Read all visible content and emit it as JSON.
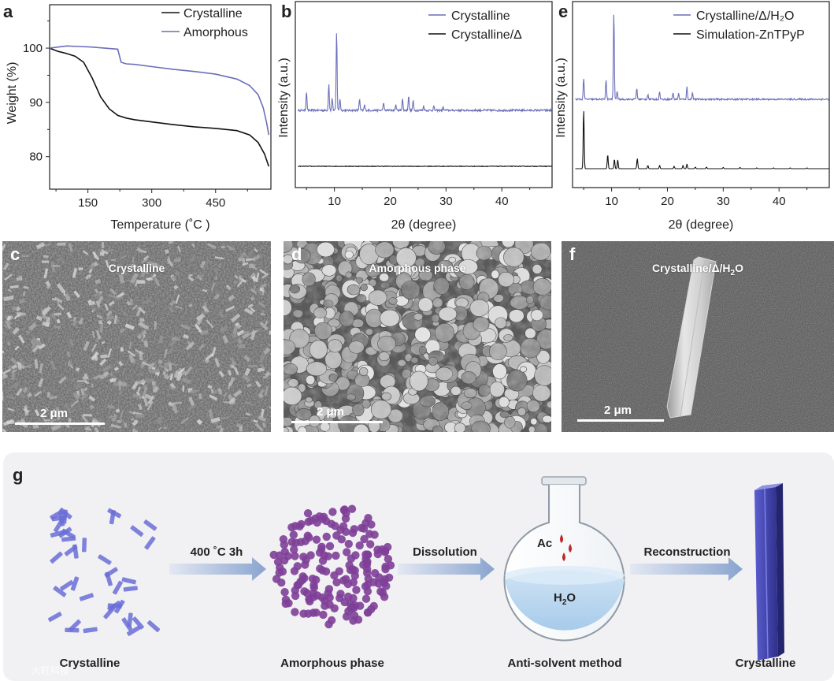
{
  "panels": {
    "a": "a",
    "b": "b",
    "c": "c",
    "d": "d",
    "e": "e",
    "f": "f",
    "g": "g"
  },
  "sem": {
    "c": {
      "label": "Crystalline",
      "scale": "2 μm"
    },
    "d": {
      "label": "Amorphous phase",
      "scale": "2 μm"
    },
    "f": {
      "label": "Crystalline/Δ/H",
      "label_sub": "2",
      "label_tail": "O",
      "scale": "2 μm"
    }
  },
  "scheme": {
    "step1": "400 ˚C  3h",
    "step2": "Dissolution",
    "step3": "Reconstruction",
    "flask_ac": "Ac",
    "flask_h2o_main": "H",
    "flask_h2o_sub": "2",
    "flask_h2o_tail": "O",
    "cap1": "Crystalline",
    "cap2": "Amorphous phase",
    "cap3": "Anti-solvent method",
    "cap4": "Crystalline",
    "watermark": "大旺科技"
  },
  "colors": {
    "blue": "#6a6fb8",
    "black": "#111111",
    "purple": "#7e3f98",
    "rod": "#6a6fd6"
  },
  "chart_data": [
    {
      "type": "line",
      "panel": "a",
      "xlabel": "Temperature (˚C )",
      "ylabel": "Weight (%)",
      "xlim": [
        60,
        580
      ],
      "ylim": [
        74,
        108
      ],
      "xticks": [
        150,
        300,
        450
      ],
      "yticks": [
        80,
        90,
        100
      ],
      "legend_position": "top-right",
      "series": [
        {
          "name": "Crystalline",
          "color": "#111111",
          "x": [
            60,
            80,
            100,
            120,
            140,
            160,
            180,
            200,
            220,
            240,
            260,
            300,
            350,
            400,
            450,
            500,
            530,
            550,
            565,
            575
          ],
          "y": [
            100,
            99.4,
            99.0,
            98.5,
            97.4,
            94.5,
            91.0,
            88.8,
            87.6,
            87.1,
            86.8,
            86.4,
            85.9,
            85.5,
            85.2,
            84.8,
            84.0,
            82.6,
            80.5,
            78.2
          ]
        },
        {
          "name": "Amorphous",
          "color": "#6a6fb8",
          "x": [
            60,
            80,
            100,
            130,
            160,
            190,
            220,
            228,
            240,
            260,
            300,
            350,
            400,
            450,
            500,
            530,
            550,
            562,
            570,
            575
          ],
          "y": [
            100,
            100.2,
            100.4,
            100.3,
            100.2,
            100.0,
            99.8,
            97.4,
            97.1,
            97.0,
            96.6,
            96.1,
            95.7,
            95.2,
            94.3,
            93.1,
            91.4,
            89.0,
            86.2,
            84.0
          ]
        }
      ]
    },
    {
      "type": "line",
      "panel": "b",
      "xlabel": "2θ (degree)",
      "ylabel": "Intensity  (a.u.)",
      "xlim": [
        3,
        49
      ],
      "xticks": [
        10,
        20,
        30,
        40
      ],
      "legend_position": "top-right",
      "series": [
        {
          "name": "Crystalline",
          "color": "#6a6fb8",
          "baseline": 0.6,
          "noise": 0.25,
          "peaks": [
            [
              5.0,
              2.4
            ],
            [
              9.0,
              3.4
            ],
            [
              9.6,
              1.6
            ],
            [
              10.4,
              10.0
            ],
            [
              11.0,
              1.5
            ],
            [
              14.5,
              1.4
            ],
            [
              15.4,
              0.7
            ],
            [
              18.8,
              1.0
            ],
            [
              21.0,
              0.7
            ],
            [
              22.2,
              1.5
            ],
            [
              23.3,
              1.9
            ],
            [
              24.1,
              1.2
            ],
            [
              26.0,
              0.6
            ],
            [
              27.8,
              0.5
            ],
            [
              29.5,
              0.4
            ]
          ]
        },
        {
          "name": "Crystalline/Δ",
          "color": "#111111",
          "baseline": 0.0,
          "noise": 0.1,
          "peaks": []
        }
      ]
    },
    {
      "type": "line",
      "panel": "e",
      "xlabel": "2θ (degree)",
      "ylabel": "Intensity  (a.u.)",
      "xlim": [
        3,
        49
      ],
      "xticks": [
        10,
        20,
        30,
        40
      ],
      "legend_position": "top-right",
      "series": [
        {
          "name": "Crystalline/Δ/H2O",
          "color": "#6a6fb8",
          "baseline": 0.0,
          "noise": 0.2,
          "peaks": [
            [
              5.0,
              2.6
            ],
            [
              9.0,
              2.4
            ],
            [
              10.4,
              10.5
            ],
            [
              11.0,
              1.0
            ],
            [
              14.5,
              1.3
            ],
            [
              16.5,
              0.6
            ],
            [
              18.6,
              0.9
            ],
            [
              21.0,
              0.8
            ],
            [
              22.0,
              0.7
            ],
            [
              23.5,
              1.5
            ],
            [
              24.5,
              0.8
            ]
          ]
        },
        {
          "name": "Simulation-ZnTPyP",
          "color": "#111111",
          "baseline": 0.0,
          "noise": 0.0,
          "peaks": [
            [
              5.0,
              7.5
            ],
            [
              9.3,
              1.8
            ],
            [
              10.5,
              1.2
            ],
            [
              11.1,
              1.1
            ],
            [
              14.6,
              1.3
            ],
            [
              16.5,
              0.4
            ],
            [
              18.6,
              0.4
            ],
            [
              21.2,
              0.3
            ],
            [
              22.8,
              0.4
            ],
            [
              23.5,
              0.6
            ],
            [
              25.0,
              0.2
            ],
            [
              27.0,
              0.2
            ],
            [
              30.0,
              0.15
            ],
            [
              33.0,
              0.15
            ],
            [
              36.0,
              0.1
            ],
            [
              39.0,
              0.1
            ],
            [
              42.0,
              0.1
            ],
            [
              45.0,
              0.1
            ]
          ]
        }
      ]
    }
  ]
}
